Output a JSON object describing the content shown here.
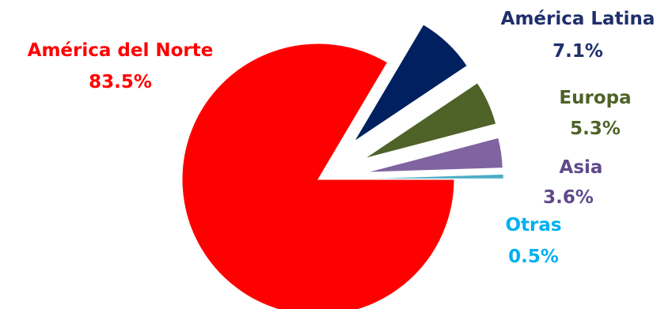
{
  "chart_data": {
    "type": "pie",
    "exploded": true,
    "slices": [
      {
        "name": "América del Norte",
        "value": 83.5,
        "label": "83.5%",
        "color": "#ff0000"
      },
      {
        "name": "América Latina",
        "value": 7.1,
        "label": "7.1%",
        "color": "#002060",
        "label_color": "#1f2f6b"
      },
      {
        "name": "Europa",
        "value": 5.3,
        "label": "5.3%",
        "color": "#4f6228",
        "label_color": "#4f6228"
      },
      {
        "name": "Asia",
        "value": 3.6,
        "label": "3.6%",
        "color": "#8064a2",
        "label_color": "#5f4a8b"
      },
      {
        "name": "Otras",
        "value": 0.5,
        "label": "0.5%",
        "color": "#4bacc6",
        "label_color": "#00b0f0"
      }
    ]
  }
}
